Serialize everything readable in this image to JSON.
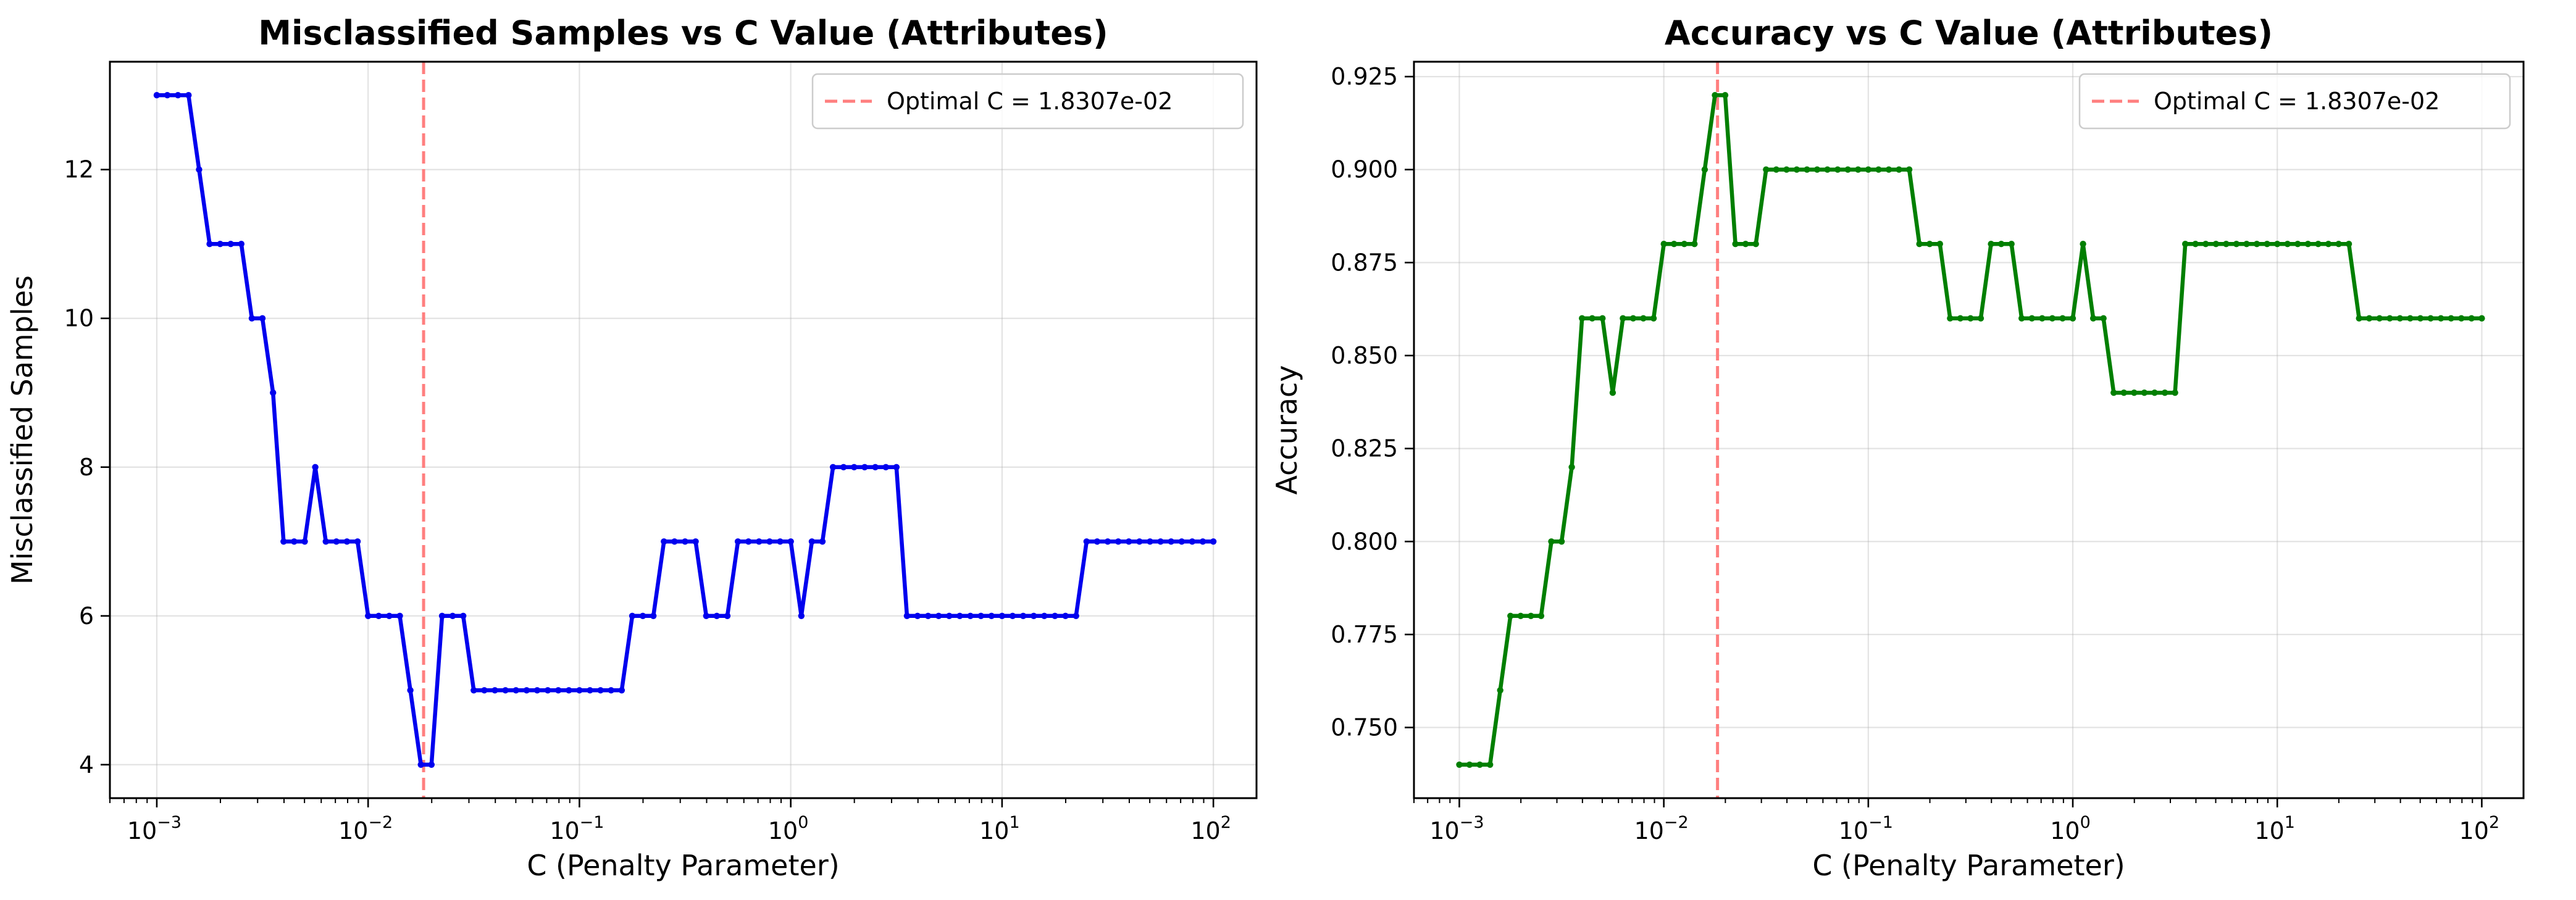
{
  "chart_data": [
    {
      "type": "line",
      "title": "Misclassified Samples vs C Value (Attributes)",
      "xlabel": "C (Penalty Parameter)",
      "ylabel": "Misclassified Samples",
      "xscale": "log",
      "xlim": [
        0.0006,
        160
      ],
      "ylim": [
        3.55,
        13.45
      ],
      "xticks": [
        0.001,
        0.01,
        0.1,
        1,
        10,
        100
      ],
      "xtick_labels": [
        [
          "10",
          "−3"
        ],
        [
          "10",
          "−2"
        ],
        [
          "10",
          "−1"
        ],
        [
          "10",
          "0"
        ],
        [
          "10",
          "1"
        ],
        [
          "10",
          "2"
        ]
      ],
      "yticks": [
        4,
        6,
        8,
        10,
        12
      ],
      "ytick_labels": [
        "4",
        "6",
        "8",
        "10",
        "12"
      ],
      "grid": true,
      "legend_position": "top-right",
      "vline": {
        "x": 0.018307,
        "label": "Optimal C = 1.8307e-02",
        "color": "#ff7f7f",
        "style": "dashed"
      },
      "series": [
        {
          "color": "#0000ee",
          "x_log10_range": [
            -3,
            2
          ],
          "values": [
            13,
            13,
            13,
            13,
            12,
            11,
            11,
            11,
            11,
            10,
            10,
            9,
            7,
            7,
            7,
            8,
            7,
            7,
            7,
            7,
            6,
            6,
            6,
            6,
            5,
            4,
            4,
            6,
            6,
            6,
            5,
            5,
            5,
            5,
            5,
            5,
            5,
            5,
            5,
            5,
            5,
            5,
            5,
            5,
            5,
            6,
            6,
            6,
            7,
            7,
            7,
            7,
            6,
            6,
            6,
            7,
            7,
            7,
            7,
            7,
            7,
            6,
            7,
            7,
            8,
            8,
            8,
            8,
            8,
            8,
            8,
            6,
            6,
            6,
            6,
            6,
            6,
            6,
            6,
            6,
            6,
            6,
            6,
            6,
            6,
            6,
            6,
            6,
            7,
            7,
            7,
            7,
            7,
            7,
            7,
            7,
            7,
            7,
            7,
            7,
            7
          ]
        }
      ]
    },
    {
      "type": "line",
      "title": "Accuracy vs C Value (Attributes)",
      "xlabel": "C (Penalty Parameter)",
      "ylabel": "Accuracy",
      "xscale": "log",
      "xlim": [
        0.0006,
        160
      ],
      "ylim": [
        0.731,
        0.929
      ],
      "xticks": [
        0.001,
        0.01,
        0.1,
        1,
        10,
        100
      ],
      "xtick_labels": [
        [
          "10",
          "−3"
        ],
        [
          "10",
          "−2"
        ],
        [
          "10",
          "−1"
        ],
        [
          "10",
          "0"
        ],
        [
          "10",
          "1"
        ],
        [
          "10",
          "2"
        ]
      ],
      "yticks": [
        0.75,
        0.775,
        0.8,
        0.825,
        0.85,
        0.875,
        0.9,
        0.925
      ],
      "ytick_labels": [
        "0.750",
        "0.775",
        "0.800",
        "0.825",
        "0.850",
        "0.875",
        "0.900",
        "0.925"
      ],
      "grid": true,
      "legend_position": "top-right",
      "vline": {
        "x": 0.018307,
        "label": "Optimal C = 1.8307e-02",
        "color": "#ff7f7f",
        "style": "dashed"
      },
      "series": [
        {
          "color": "#007f00",
          "x_log10_range": [
            -3,
            2
          ],
          "values": [
            0.74,
            0.74,
            0.74,
            0.74,
            0.76,
            0.78,
            0.78,
            0.78,
            0.78,
            0.8,
            0.8,
            0.82,
            0.86,
            0.86,
            0.86,
            0.84,
            0.86,
            0.86,
            0.86,
            0.86,
            0.88,
            0.88,
            0.88,
            0.88,
            0.9,
            0.92,
            0.92,
            0.88,
            0.88,
            0.88,
            0.9,
            0.9,
            0.9,
            0.9,
            0.9,
            0.9,
            0.9,
            0.9,
            0.9,
            0.9,
            0.9,
            0.9,
            0.9,
            0.9,
            0.9,
            0.88,
            0.88,
            0.88,
            0.86,
            0.86,
            0.86,
            0.86,
            0.88,
            0.88,
            0.88,
            0.86,
            0.86,
            0.86,
            0.86,
            0.86,
            0.86,
            0.88,
            0.86,
            0.86,
            0.84,
            0.84,
            0.84,
            0.84,
            0.84,
            0.84,
            0.84,
            0.88,
            0.88,
            0.88,
            0.88,
            0.88,
            0.88,
            0.88,
            0.88,
            0.88,
            0.88,
            0.88,
            0.88,
            0.88,
            0.88,
            0.88,
            0.88,
            0.88,
            0.86,
            0.86,
            0.86,
            0.86,
            0.86,
            0.86,
            0.86,
            0.86,
            0.86,
            0.86,
            0.86,
            0.86,
            0.86
          ]
        }
      ]
    }
  ]
}
